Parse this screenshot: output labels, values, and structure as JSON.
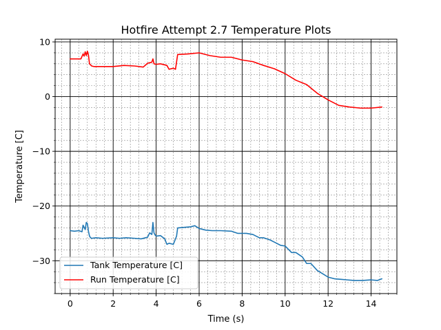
{
  "chart_data": {
    "type": "line",
    "title": "Hotfire Attempt 2.7 Temperature Plots",
    "xlabel": "Time (s)",
    "ylabel": "Temperature [C]",
    "xlim": [
      -0.7,
      15.2
    ],
    "ylim": [
      -36,
      10.5
    ],
    "x_ticks": [
      0,
      2,
      4,
      6,
      8,
      10,
      12,
      14
    ],
    "y_ticks": [
      10,
      0,
      -10,
      -20,
      -30
    ],
    "x_minor_step": 0.4,
    "y_minor_step": 2,
    "grid": true,
    "legend_position": "lower-left",
    "series": [
      {
        "name": "Tank Temperature [C]",
        "color": "#1f77b4",
        "x": [
          0.0,
          0.2,
          0.4,
          0.55,
          0.6,
          0.7,
          0.75,
          0.8,
          0.85,
          0.9,
          0.95,
          1.0,
          1.2,
          1.5,
          2.0,
          2.3,
          2.6,
          3.0,
          3.3,
          3.6,
          3.7,
          3.8,
          3.85,
          3.9,
          3.95,
          4.0,
          4.2,
          4.4,
          4.5,
          4.6,
          4.8,
          4.95,
          5.0,
          5.3,
          5.6,
          5.8,
          6.0,
          6.3,
          6.6,
          7.0,
          7.5,
          7.8,
          8.2,
          8.5,
          8.8,
          9.0,
          9.3,
          9.5,
          9.8,
          10.0,
          10.3,
          10.5,
          10.8,
          11.0,
          11.2,
          11.5,
          11.8,
          12.0,
          12.3,
          12.6,
          12.9,
          13.2,
          13.6,
          14.0,
          14.3,
          14.5
        ],
        "y": [
          -24.5,
          -24.6,
          -24.5,
          -24.7,
          -23.5,
          -24.3,
          -23.0,
          -23.2,
          -24.6,
          -25.5,
          -25.8,
          -25.9,
          -25.8,
          -25.9,
          -25.8,
          -25.9,
          -25.8,
          -25.9,
          -26.0,
          -25.7,
          -24.9,
          -25.2,
          -23.0,
          -24.9,
          -25.3,
          -25.5,
          -25.4,
          -26.0,
          -27.0,
          -26.8,
          -27.0,
          -25.5,
          -24.0,
          -23.9,
          -23.8,
          -23.6,
          -24.1,
          -24.4,
          -24.5,
          -24.5,
          -24.6,
          -25.0,
          -25.0,
          -25.2,
          -25.8,
          -25.8,
          -26.2,
          -26.6,
          -27.2,
          -27.3,
          -28.5,
          -28.5,
          -29.3,
          -30.5,
          -30.5,
          -31.8,
          -32.5,
          -33.0,
          -33.3,
          -33.4,
          -33.5,
          -33.6,
          -33.6,
          -33.5,
          -33.6,
          -33.3
        ]
      },
      {
        "name": "Run Temperature [C]",
        "color": "#ff0000",
        "x": [
          0.0,
          0.5,
          0.6,
          0.65,
          0.7,
          0.75,
          0.8,
          0.85,
          0.9,
          0.95,
          1.0,
          1.1,
          1.5,
          2.0,
          2.5,
          3.0,
          3.4,
          3.6,
          3.8,
          3.85,
          3.9,
          4.0,
          4.2,
          4.5,
          4.6,
          4.8,
          4.9,
          5.0,
          5.5,
          6.0,
          6.5,
          7.0,
          7.5,
          8.0,
          8.5,
          9.0,
          9.5,
          10.0,
          10.5,
          11.0,
          11.5,
          12.0,
          12.5,
          13.0,
          13.5,
          14.0,
          14.5
        ],
        "y": [
          6.9,
          6.9,
          7.8,
          7.4,
          8.2,
          7.5,
          8.3,
          7.6,
          6.0,
          5.8,
          5.6,
          5.5,
          5.5,
          5.5,
          5.7,
          5.6,
          5.4,
          6.1,
          6.3,
          6.9,
          6.0,
          5.9,
          6.0,
          5.7,
          5.0,
          5.2,
          5.0,
          7.7,
          7.8,
          8.0,
          7.5,
          7.2,
          7.2,
          6.7,
          6.4,
          5.7,
          5.1,
          4.2,
          3.0,
          2.2,
          0.6,
          -0.6,
          -1.6,
          -1.9,
          -2.1,
          -2.1,
          -1.9
        ]
      }
    ]
  }
}
